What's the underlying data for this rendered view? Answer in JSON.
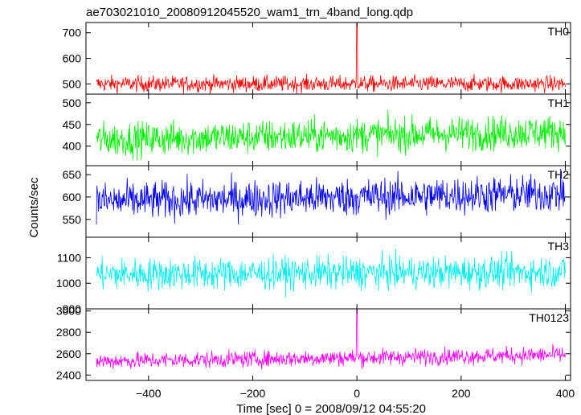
{
  "chart_data": {
    "type": "line",
    "title": "ae703021010_20080912045520_wam1_trn_4band_long.qdp",
    "xlabel": "Time [sec] 0 = 2008/09/12 04:55:20",
    "ylabel": "Counts/sec",
    "xlim": [
      -520,
      410
    ],
    "x_ticks": [
      -400,
      -200,
      0,
      200,
      400
    ],
    "x_tick_labels": [
      "−400",
      "−200",
      "0",
      "200",
      "400"
    ],
    "x_start": -500,
    "x_end": 400,
    "grid": false,
    "legend": "none",
    "panels": [
      {
        "name": "TH0",
        "color": "#ff0000",
        "ylim": [
          460,
          740
        ],
        "yticks": [
          500,
          600,
          700
        ],
        "mean": 500,
        "spread": 22,
        "trend": [
          0,
          0
        ],
        "spike_x": 0,
        "spike_y": 740
      },
      {
        "name": "TH1",
        "color": "#00ee00",
        "ylim": [
          355,
          520
        ],
        "yticks": [
          400,
          450,
          500
        ],
        "mean": 415,
        "spread": 28,
        "trend": [
          0,
          18
        ],
        "spike_x": null,
        "spike_y": null
      },
      {
        "name": "TH2",
        "color": "#0000ee",
        "ylim": [
          510,
          670
        ],
        "yticks": [
          550,
          600,
          650
        ],
        "mean": 590,
        "spread": 30,
        "trend": [
          0,
          18
        ],
        "spike_x": null,
        "spike_y": null
      },
      {
        "name": "TH3",
        "color": "#00eeee",
        "ylim": [
          900,
          1180
        ],
        "yticks": [
          900,
          1000,
          1100
        ],
        "mean": 1035,
        "spread": 45,
        "trend": [
          0,
          10
        ],
        "spike_x": null,
        "spike_y": null
      },
      {
        "name": "TH0123",
        "color": "#ff00ff",
        "ylim": [
          2350,
          3020
        ],
        "yticks": [
          2400,
          2600,
          2800,
          3000
        ],
        "mean": 2530,
        "spread": 55,
        "trend": [
          0,
          60
        ],
        "spike_x": 0,
        "spike_y": 3020
      }
    ]
  }
}
